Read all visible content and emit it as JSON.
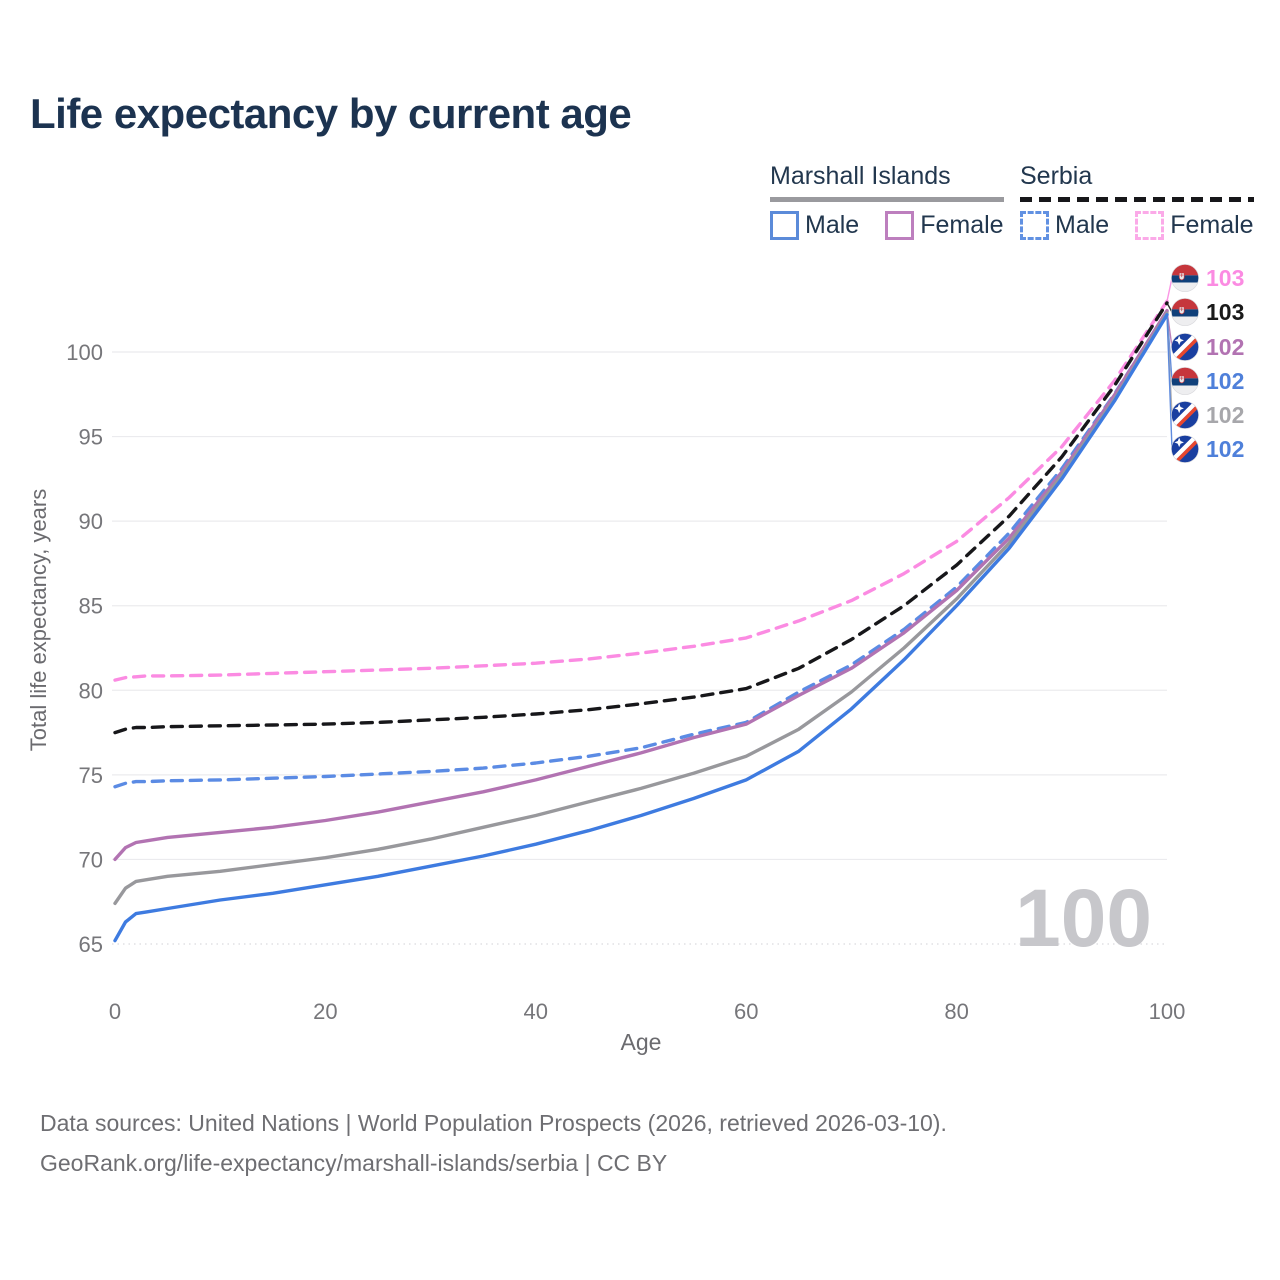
{
  "title": "Life expectancy by current age",
  "legend": {
    "groups": [
      {
        "name": "Marshall Islands",
        "line_style": "solid",
        "line_color": "#9a9a9e",
        "items": [
          {
            "label": "Male",
            "swatch_color": "#5b8bd9",
            "swatch_style": "solid"
          },
          {
            "label": "Female",
            "swatch_color": "#bd7fbe",
            "swatch_style": "solid"
          }
        ]
      },
      {
        "name": "Serbia",
        "line_style": "dashed",
        "line_color": "#17171a",
        "items": [
          {
            "label": "Male",
            "swatch_color": "#6191e2",
            "swatch_style": "dashed"
          },
          {
            "label": "Female",
            "swatch_color": "#fbaae8",
            "swatch_style": "dashed"
          }
        ]
      }
    ]
  },
  "chart_data": {
    "type": "line",
    "title": "Life expectancy by current age",
    "xlabel": "Age",
    "ylabel": "Total life expectancy, years",
    "xlim": [
      0,
      100
    ],
    "ylim": [
      63.5,
      104
    ],
    "xticks": [
      0,
      20,
      40,
      60,
      80,
      100
    ],
    "yticks": [
      65,
      70,
      75,
      80,
      85,
      90,
      95,
      100
    ],
    "grid": "horizontal",
    "legend_position": "top-right",
    "watermark": "100",
    "x_ages": [
      0,
      1,
      2,
      3,
      5,
      10,
      15,
      20,
      25,
      30,
      35,
      40,
      45,
      50,
      55,
      60,
      65,
      70,
      75,
      80,
      85,
      90,
      95,
      100
    ],
    "series": [
      {
        "key": "serbia-female",
        "name": "Serbia Female",
        "style": "dashed",
        "color": "#fb8be2",
        "values": [
          80.6,
          80.75,
          80.8,
          80.85,
          80.85,
          80.9,
          81.0,
          81.1,
          81.2,
          81.3,
          81.45,
          81.6,
          81.85,
          82.2,
          82.6,
          83.1,
          84.1,
          85.3,
          86.9,
          88.8,
          91.4,
          94.4,
          98.3,
          103.0
        ]
      },
      {
        "key": "serbia-total",
        "name": "Serbia",
        "style": "dashed",
        "color": "#17171a",
        "values": [
          77.5,
          77.7,
          77.8,
          77.8,
          77.85,
          77.9,
          77.95,
          78.0,
          78.1,
          78.25,
          78.4,
          78.6,
          78.85,
          79.2,
          79.6,
          80.1,
          81.3,
          83.0,
          85.0,
          87.4,
          90.3,
          93.8,
          98.0,
          102.9
        ]
      },
      {
        "key": "serbia-male",
        "name": "Serbia Male",
        "style": "dashed",
        "color": "#5b8be4",
        "values": [
          74.3,
          74.5,
          74.6,
          74.6,
          74.65,
          74.7,
          74.8,
          74.9,
          75.05,
          75.2,
          75.4,
          75.7,
          76.1,
          76.6,
          77.4,
          78.1,
          79.9,
          81.5,
          83.6,
          86.1,
          89.3,
          93.1,
          97.5,
          102.4
        ]
      },
      {
        "key": "mi-female",
        "name": "Marshall Islands Female",
        "style": "solid",
        "color": "#b273b2",
        "values": [
          70.0,
          70.7,
          71.0,
          71.1,
          71.3,
          71.6,
          71.9,
          72.3,
          72.8,
          73.4,
          74.0,
          74.7,
          75.5,
          76.3,
          77.2,
          78.0,
          79.7,
          81.3,
          83.4,
          85.9,
          89.0,
          92.9,
          97.45,
          102.45
        ]
      },
      {
        "key": "mi-total",
        "name": "Marshall Islands",
        "style": "solid",
        "color": "#98989c",
        "values": [
          67.4,
          68.3,
          68.7,
          68.8,
          69.0,
          69.3,
          69.7,
          70.1,
          70.6,
          71.2,
          71.9,
          72.6,
          73.4,
          74.2,
          75.1,
          76.1,
          77.7,
          79.9,
          82.5,
          85.4,
          88.7,
          92.7,
          97.2,
          102.3
        ]
      },
      {
        "key": "mi-male",
        "name": "Marshall Islands Male",
        "style": "solid",
        "color": "#3e7be0",
        "values": [
          65.2,
          66.3,
          66.8,
          66.9,
          67.1,
          67.6,
          68.0,
          68.5,
          69.0,
          69.6,
          70.2,
          70.9,
          71.7,
          72.6,
          73.6,
          74.7,
          76.4,
          78.9,
          81.8,
          85.0,
          88.4,
          92.5,
          97.1,
          102.2
        ]
      }
    ]
  },
  "end_labels": [
    {
      "value": "103",
      "color": "#fb8be2",
      "flag_ref": "#flag-serbia",
      "series": "serbia-female"
    },
    {
      "value": "103",
      "color": "#1a1a1a",
      "flag_ref": "#flag-serbia",
      "series": "serbia-total"
    },
    {
      "value": "102",
      "color": "#b273b2",
      "flag_ref": "#flag-mi",
      "series": "mi-female"
    },
    {
      "value": "102",
      "color": "#4f80da",
      "flag_ref": "#flag-serbia",
      "series": "serbia-male"
    },
    {
      "value": "102",
      "color": "#a7a7ab",
      "flag_ref": "#flag-mi",
      "series": "mi-total"
    },
    {
      "value": "102",
      "color": "#4f80da",
      "flag_ref": "#flag-mi",
      "series": "mi-male"
    }
  ],
  "footer": {
    "line1": "Data sources: United Nations | World Population Prospects (2026, retrieved 2026-03-10).",
    "line2": "GeoRank.org/life-expectancy/marshall-islands/serbia | CC BY"
  }
}
